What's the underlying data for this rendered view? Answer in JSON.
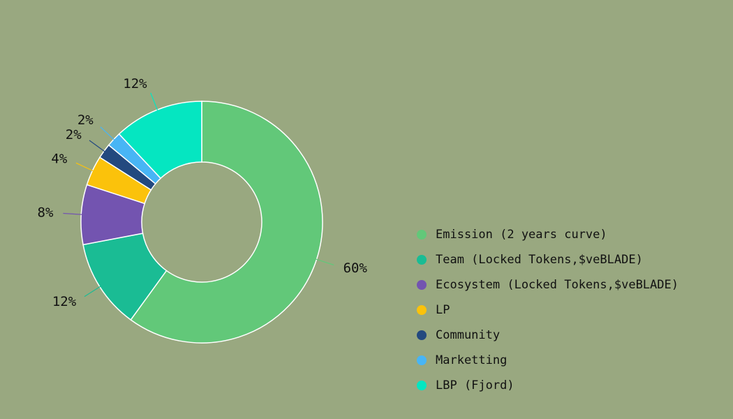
{
  "background": "#99a880",
  "chart_data": {
    "type": "pie",
    "variant": "donut",
    "title": "",
    "legend_position": "right",
    "unit": "%",
    "slices": [
      {
        "name": "Emission (2 years curve)",
        "value": 60,
        "label": "60%",
        "color": "#62c879"
      },
      {
        "name": "Team (Locked Tokens,$veBLADE)",
        "value": 12,
        "label": "12%",
        "color": "#1abc94"
      },
      {
        "name": "Ecosystem (Locked Tokens,$veBLADE)",
        "value": 8,
        "label": "8%",
        "color": "#7354b0"
      },
      {
        "name": "LP",
        "value": 4,
        "label": "4%",
        "color": "#fbc20b"
      },
      {
        "name": "Community",
        "value": 2,
        "label": "2%",
        "color": "#23497f"
      },
      {
        "name": "Marketting",
        "value": 2,
        "label": "2%",
        "color": "#48b5f5"
      },
      {
        "name": "LBP (Fjord)",
        "value": 12,
        "label": "12%",
        "color": "#05e6c1"
      }
    ]
  }
}
